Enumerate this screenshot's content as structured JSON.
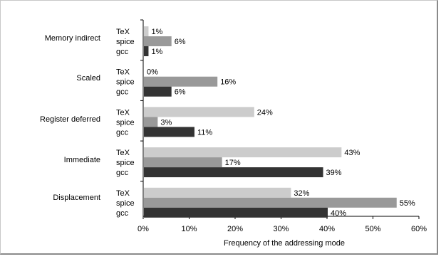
{
  "chart_data": {
    "type": "bar",
    "orientation": "horizontal",
    "xlabel": "Frequency of the addressing mode",
    "xlim": [
      0,
      60
    ],
    "xticks": [
      "0%",
      "10%",
      "20%",
      "30%",
      "40%",
      "50%",
      "60%"
    ],
    "grid": false,
    "legend": "none",
    "categories": [
      "Memory indirect",
      "Scaled",
      "Register deferred",
      "Immediate",
      "Displacement"
    ],
    "series": [
      {
        "name": "TeX",
        "color": "#cccccc",
        "values": [
          1,
          0,
          24,
          43,
          32
        ],
        "labels": [
          "1%",
          "0%",
          "24%",
          "43%",
          "32%"
        ]
      },
      {
        "name": "spice",
        "color": "#999999",
        "values": [
          6,
          16,
          3,
          17,
          55
        ],
        "labels": [
          "6%",
          "16%",
          "3%",
          "17%",
          "55%"
        ]
      },
      {
        "name": "gcc",
        "color": "#333333",
        "values": [
          1,
          6,
          11,
          39,
          40
        ],
        "labels": [
          "1%",
          "6%",
          "11%",
          "39%",
          "40%"
        ]
      }
    ]
  }
}
